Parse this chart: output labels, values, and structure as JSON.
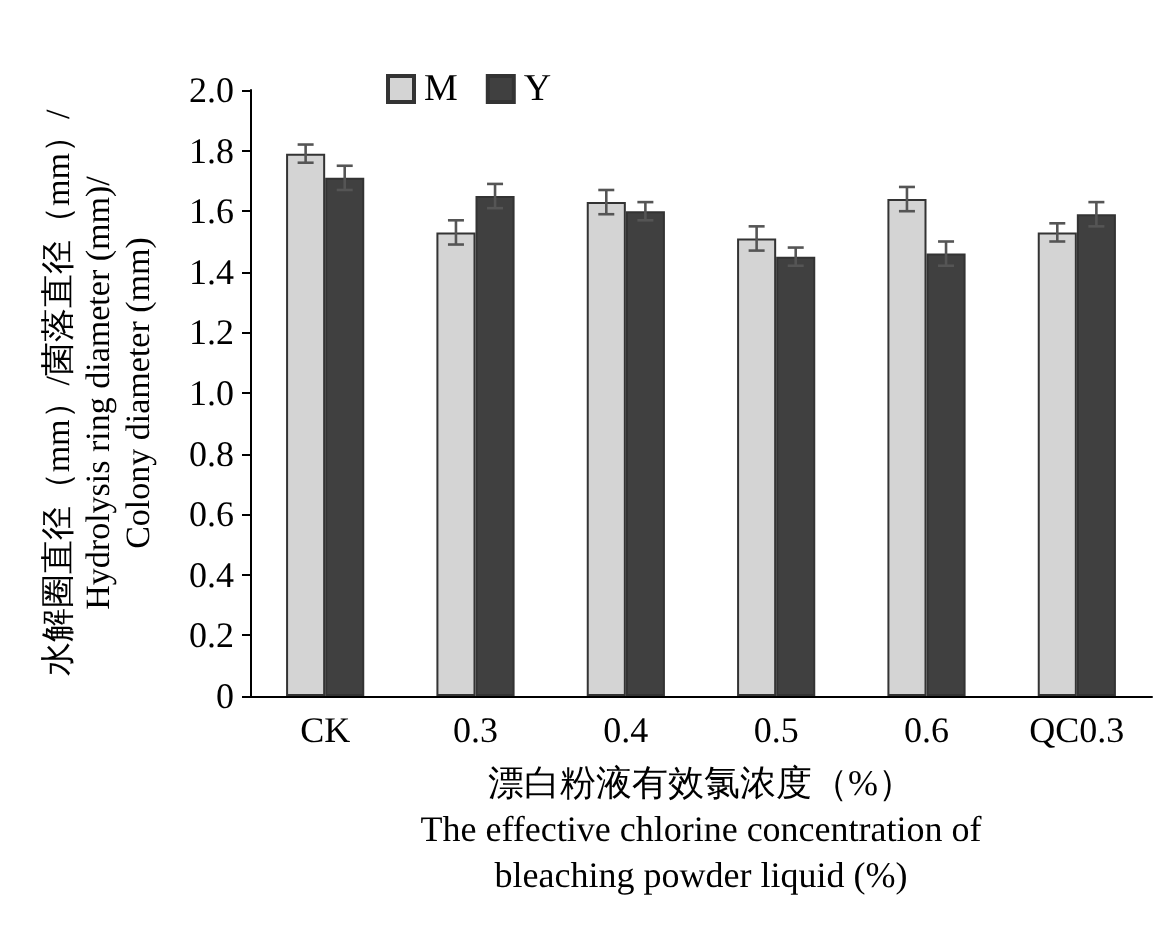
{
  "chart_data": {
    "type": "bar",
    "xlabel": "漂白粉液有效氯浓度（%）\nThe effective chlorine concentration of\nbleaching powder liquid (%)",
    "ylabel": "水解圈直径（mm）/菌落直径（mm）/\nHydrolysis ring diameter (mm)/\nColony diameter (mm)",
    "categories": [
      "CK",
      "0.3",
      "0.4",
      "0.5",
      "0.6",
      "QC0.3"
    ],
    "series": [
      {
        "name": "M",
        "color": "#d4d4d4",
        "values": [
          1.79,
          1.53,
          1.63,
          1.51,
          1.64,
          1.53
        ],
        "errors": [
          0.03,
          0.04,
          0.04,
          0.04,
          0.04,
          0.03
        ]
      },
      {
        "name": "Y",
        "color": "#404040",
        "values": [
          1.71,
          1.65,
          1.6,
          1.45,
          1.46,
          1.59
        ],
        "errors": [
          0.04,
          0.04,
          0.03,
          0.03,
          0.04,
          0.04
        ]
      }
    ],
    "ylim": [
      0,
      2.0
    ],
    "yticks": [
      0,
      0.2,
      0.4,
      0.6,
      0.8,
      {
        "value": 1.0,
        "label": "1.0"
      },
      1.2,
      1.4,
      1.6,
      1.8,
      {
        "value": 2.0,
        "label": "2.0"
      }
    ],
    "legend": "top left",
    "grid": false
  }
}
